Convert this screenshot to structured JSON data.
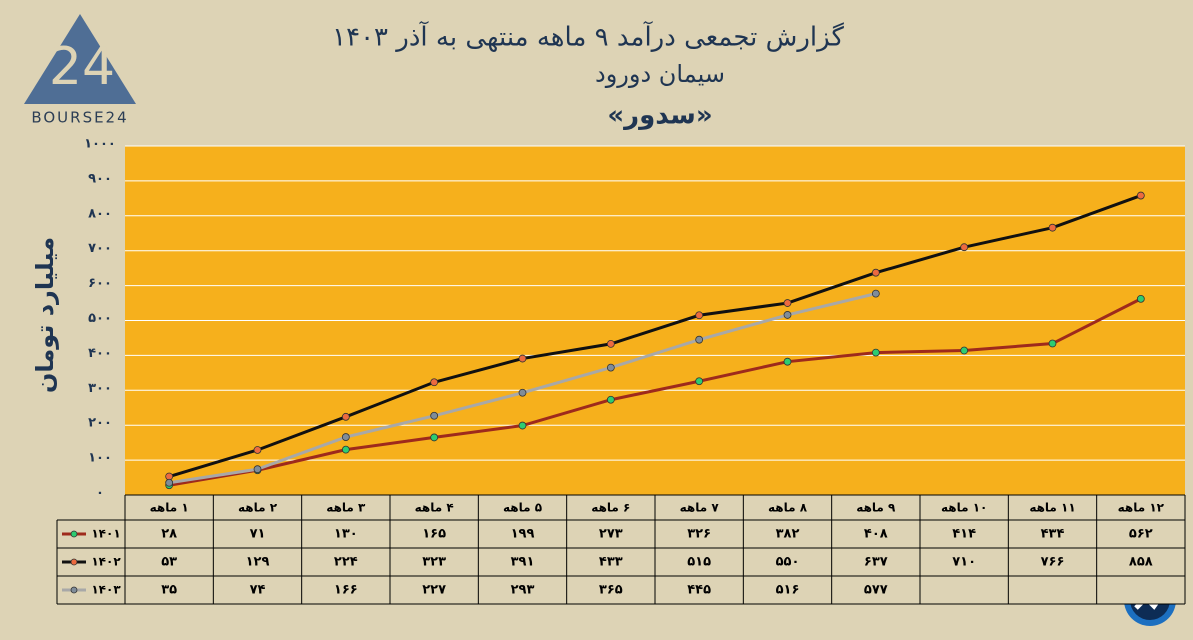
{
  "chart_data": {
    "type": "line",
    "title": "گزارش تجمعی درآمد ۹ ماهه منتهی به آذر ۱۴۰۳",
    "subtitle": "سیمان دورود",
    "symbol": "«سدور»",
    "y_label": "میلیارد تومان",
    "logo": {
      "mark": "24",
      "text": "BOURSE24"
    },
    "categories": [
      "۱ ماهه",
      "۲ ماهه",
      "۳ ماهه",
      "۴ ماهه",
      "۵ ماهه",
      "۶ ماهه",
      "۷ ماهه",
      "۸ ماهه",
      "۹ ماهه",
      "۱۰ ماهه",
      "۱۱ ماهه",
      "۱۲ ماهه"
    ],
    "series": [
      {
        "name": "۱۴۰۱",
        "color": "#9e2a1c",
        "marker_color": "#2ecc71",
        "values": [
          28,
          71,
          130,
          165,
          199,
          273,
          326,
          382,
          408,
          414,
          434,
          562
        ],
        "value_labels": [
          "۲۸",
          "۷۱",
          "۱۳۰",
          "۱۶۵",
          "۱۹۹",
          "۲۷۳",
          "۳۲۶",
          "۳۸۲",
          "۴۰۸",
          "۴۱۴",
          "۴۳۴",
          "۵۶۲"
        ]
      },
      {
        "name": "۱۴۰۲",
        "color": "#111111",
        "marker_color": "#ec6a3f",
        "values": [
          53,
          129,
          224,
          323,
          391,
          433,
          515,
          550,
          637,
          710,
          766,
          858
        ],
        "value_labels": [
          "۵۳",
          "۱۲۹",
          "۲۲۴",
          "۳۲۳",
          "۳۹۱",
          "۴۳۳",
          "۵۱۵",
          "۵۵۰",
          "۶۳۷",
          "۷۱۰",
          "۷۶۶",
          "۸۵۸"
        ]
      },
      {
        "name": "۱۴۰۳",
        "color": "#a8a8a8",
        "marker_color": "#7f8c99",
        "values": [
          35,
          74,
          166,
          227,
          293,
          365,
          445,
          516,
          577,
          null,
          null,
          null
        ],
        "value_labels": [
          "۳۵",
          "۷۴",
          "۱۶۶",
          "۲۲۷",
          "۲۹۳",
          "۳۶۵",
          "۴۴۵",
          "۵۱۶",
          "۵۷۷",
          null,
          null,
          null
        ]
      }
    ],
    "ylim": [
      0,
      1000
    ],
    "yticks": [
      {
        "value": 0,
        "label": "۰"
      },
      {
        "value": 100,
        "label": "۱۰۰"
      },
      {
        "value": 200,
        "label": "۲۰۰"
      },
      {
        "value": 300,
        "label": "۳۰۰"
      },
      {
        "value": 400,
        "label": "۴۰۰"
      },
      {
        "value": 500,
        "label": "۵۰۰"
      },
      {
        "value": 600,
        "label": "۶۰۰"
      },
      {
        "value": 700,
        "label": "۷۰۰"
      },
      {
        "value": 800,
        "label": "۸۰۰"
      },
      {
        "value": 900,
        "label": "۹۰۰"
      },
      {
        "value": 1000,
        "label": "۱۰۰۰"
      }
    ],
    "grid": true
  }
}
